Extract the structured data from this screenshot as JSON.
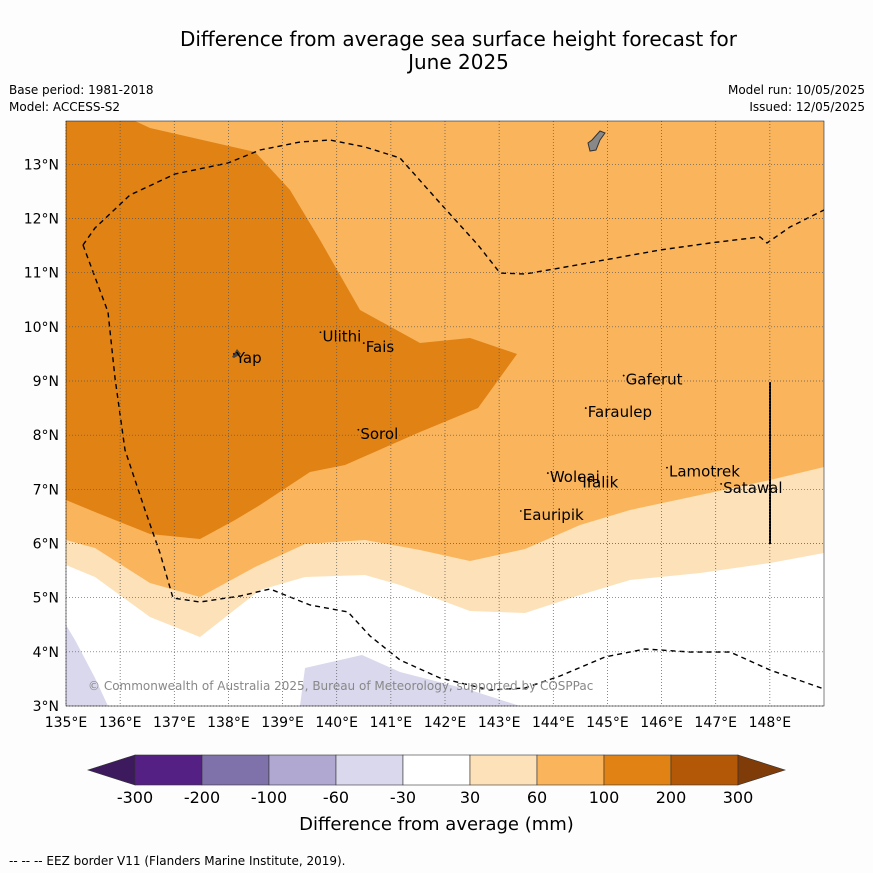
{
  "title_line1": "Difference from average sea surface height forecast for",
  "title_line2": "June 2025",
  "meta": {
    "base_period": "Base period: 1981-2018",
    "model": "Model: ACCESS-S2",
    "model_run": "Model run: 10/05/2025",
    "issued": "Issued: 12/05/2025"
  },
  "copyright": "© Commonwealth of Australia 2025, Bureau of Meteorology, supported by COSPPac",
  "axes": {
    "x_ticks": [
      "135°E",
      "136°E",
      "137°E",
      "138°E",
      "139°E",
      "140°E",
      "141°E",
      "142°E",
      "143°E",
      "144°E",
      "145°E",
      "146°E",
      "147°E",
      "148°E"
    ],
    "y_ticks": [
      "3°N",
      "4°N",
      "5°N",
      "6°N",
      "7°N",
      "8°N",
      "9°N",
      "10°N",
      "11°N",
      "12°N",
      "13°N"
    ],
    "lon_range": [
      135,
      149
    ],
    "lat_range": [
      3,
      13.8
    ]
  },
  "places": [
    {
      "name": "Yap",
      "lon": 138.1,
      "lat": 9.5
    },
    {
      "name": "Ulithi",
      "lon": 139.7,
      "lat": 9.9
    },
    {
      "name": "Fais",
      "lon": 140.5,
      "lat": 9.7
    },
    {
      "name": "Sorol",
      "lon": 140.4,
      "lat": 8.1
    },
    {
      "name": "Gaferut",
      "lon": 145.3,
      "lat": 9.1
    },
    {
      "name": "Faraulep",
      "lon": 144.6,
      "lat": 8.5
    },
    {
      "name": "Woleai",
      "lon": 143.9,
      "lat": 7.3
    },
    {
      "name": "Ifalik",
      "lon": 144.5,
      "lat": 7.2
    },
    {
      "name": "Lamotrek",
      "lon": 146.1,
      "lat": 7.4
    },
    {
      "name": "Satawal",
      "lon": 147.1,
      "lat": 7.1
    },
    {
      "name": "Eauripik",
      "lon": 143.4,
      "lat": 6.6
    }
  ],
  "colorbar": {
    "labels": [
      "-300",
      "-200",
      "-100",
      "-60",
      "-30",
      "30",
      "60",
      "100",
      "200",
      "300"
    ],
    "colors": [
      "#3d1a5e",
      "#542083",
      "#7f71aa",
      "#b1a8d1",
      "#d9d8ec",
      "#ffffff",
      "#fde1b8",
      "#f9b45c",
      "#e08214",
      "#b35806",
      "#7f3b08"
    ],
    "title": "Difference from average (mm)"
  },
  "footnote": "--  --  -- EEZ border V11 (Flanders Marine Institute, 2019)."
}
